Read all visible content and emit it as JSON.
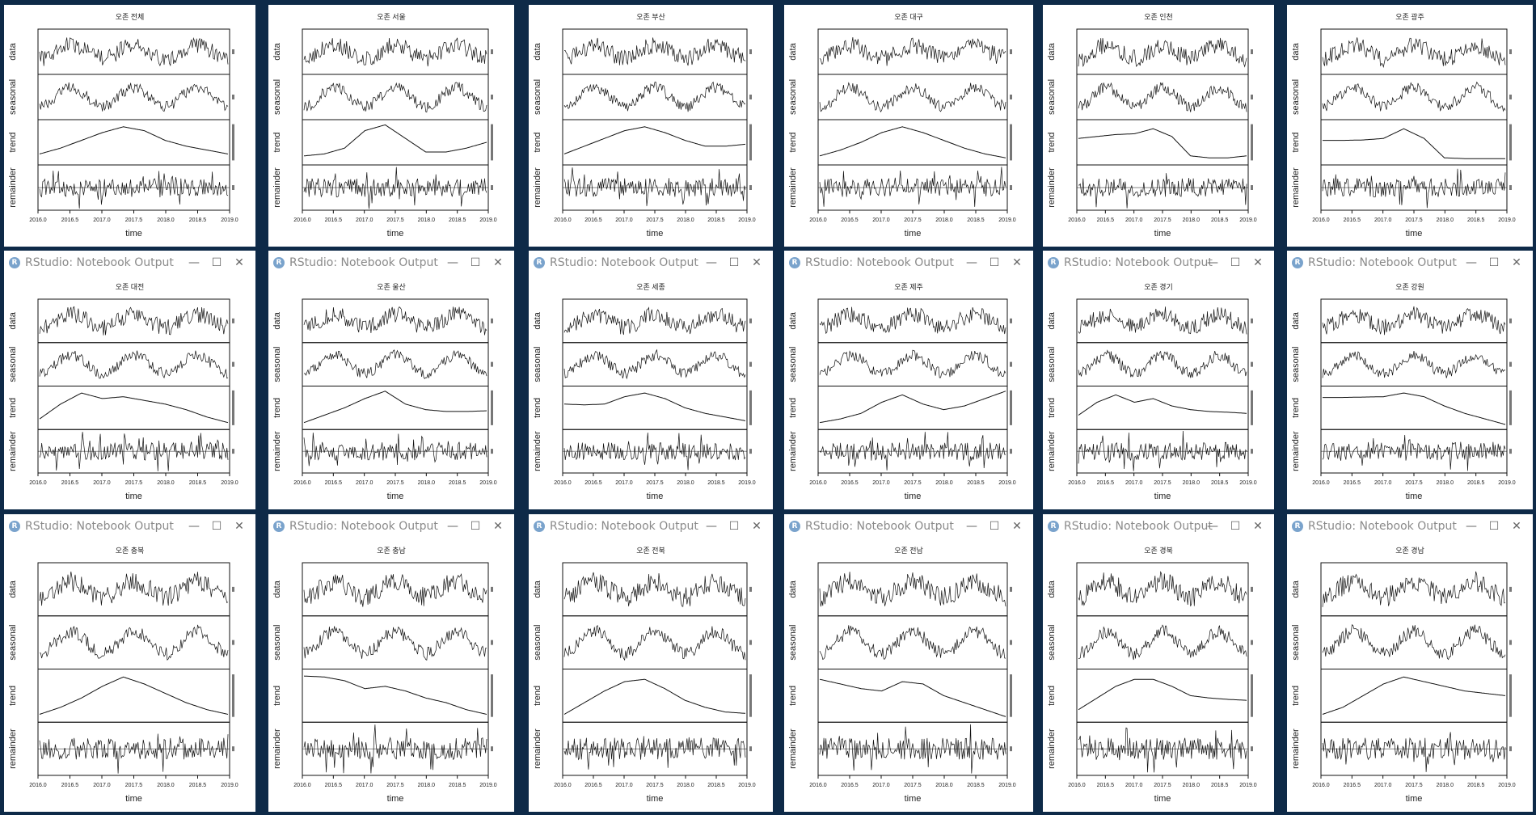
{
  "window_title": "RStudio: Notebook Output",
  "panel_labels": [
    "data",
    "seasonal",
    "trend",
    "remainder"
  ],
  "x_axis_label": "time",
  "x_ticks": [
    "2016.0",
    "2016.5",
    "2017.0",
    "2017.5",
    "2018.0",
    "2018.5",
    "2019.0"
  ],
  "plots": [
    {
      "title": "오존 전체",
      "trend": [
        0.2,
        0.35,
        0.55,
        0.75,
        0.9,
        0.8,
        0.55,
        0.4,
        0.3,
        0.2
      ]
    },
    {
      "title": "오존 서울",
      "trend": [
        0.15,
        0.2,
        0.35,
        0.8,
        0.95,
        0.6,
        0.25,
        0.25,
        0.35,
        0.5
      ]
    },
    {
      "title": "오존 부산",
      "trend": [
        0.2,
        0.4,
        0.6,
        0.8,
        0.9,
        0.75,
        0.55,
        0.4,
        0.4,
        0.45
      ]
    },
    {
      "title": "오존 대구",
      "trend": [
        0.15,
        0.3,
        0.5,
        0.75,
        0.9,
        0.75,
        0.55,
        0.35,
        0.2,
        0.1
      ]
    },
    {
      "title": "오존 인천",
      "trend": [
        0.6,
        0.65,
        0.7,
        0.72,
        0.85,
        0.65,
        0.15,
        0.1,
        0.1,
        0.15
      ]
    },
    {
      "title": "오존 광주",
      "trend": [
        0.55,
        0.55,
        0.56,
        0.6,
        0.85,
        0.6,
        0.1,
        0.08,
        0.08,
        0.08
      ]
    },
    {
      "title": "오존 대전",
      "trend": [
        0.2,
        0.6,
        0.9,
        0.75,
        0.8,
        0.7,
        0.6,
        0.45,
        0.25,
        0.1
      ]
    },
    {
      "title": "오존 울산",
      "trend": [
        0.1,
        0.3,
        0.5,
        0.75,
        0.95,
        0.6,
        0.45,
        0.4,
        0.4,
        0.42
      ]
    },
    {
      "title": "오존 세종",
      "trend": [
        0.6,
        0.58,
        0.6,
        0.8,
        0.9,
        0.75,
        0.5,
        0.35,
        0.25,
        0.15
      ]
    },
    {
      "title": "오존 제주",
      "trend": [
        0.1,
        0.2,
        0.35,
        0.65,
        0.85,
        0.6,
        0.45,
        0.55,
        0.75,
        0.95
      ]
    },
    {
      "title": "오존 경기",
      "trend": [
        0.3,
        0.65,
        0.85,
        0.65,
        0.75,
        0.55,
        0.45,
        0.4,
        0.38,
        0.35
      ]
    },
    {
      "title": "오존 강원",
      "trend": [
        0.78,
        0.78,
        0.79,
        0.8,
        0.9,
        0.8,
        0.55,
        0.35,
        0.2,
        0.05
      ]
    },
    {
      "title": "오존 충북",
      "trend": [
        0.1,
        0.25,
        0.45,
        0.7,
        0.9,
        0.75,
        0.55,
        0.35,
        0.2,
        0.1
      ]
    },
    {
      "title": "오존 충남",
      "trend": [
        0.92,
        0.9,
        0.82,
        0.65,
        0.7,
        0.6,
        0.45,
        0.35,
        0.2,
        0.1
      ]
    },
    {
      "title": "오존 전북",
      "trend": [
        0.1,
        0.35,
        0.6,
        0.8,
        0.85,
        0.65,
        0.4,
        0.25,
        0.15,
        0.12
      ]
    },
    {
      "title": "오존 전남",
      "trend": [
        0.85,
        0.75,
        0.65,
        0.6,
        0.8,
        0.75,
        0.5,
        0.35,
        0.2,
        0.05
      ]
    },
    {
      "title": "오존 경북",
      "trend": [
        0.2,
        0.45,
        0.7,
        0.85,
        0.85,
        0.7,
        0.5,
        0.45,
        0.42,
        0.4
      ]
    },
    {
      "title": "오존 경남",
      "trend": [
        0.1,
        0.25,
        0.5,
        0.75,
        0.9,
        0.8,
        0.7,
        0.6,
        0.55,
        0.5
      ]
    }
  ],
  "colors": {
    "desktop": "#0e2a48",
    "window": "#ffffff",
    "ink": "#111111",
    "title_text": "#8a8a8a"
  },
  "icons": {
    "app": "rstudio-icon",
    "minimize": "minimize-icon",
    "maximize": "maximize-icon",
    "close": "close-icon"
  }
}
